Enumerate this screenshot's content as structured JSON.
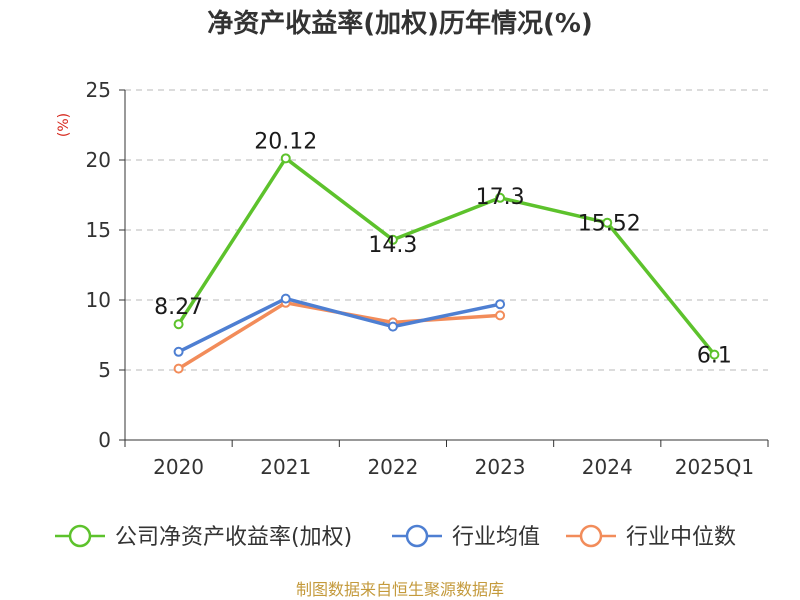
{
  "chart_data": {
    "type": "line",
    "title": "净资产收益率(加权)历年情况(%)",
    "unit_label": "(%)",
    "categories": [
      "2020",
      "2021",
      "2022",
      "2023",
      "2024",
      "2025Q1"
    ],
    "ylim": [
      0,
      25
    ],
    "yticks": [
      0,
      5,
      10,
      15,
      20,
      25
    ],
    "grid": true,
    "legend_position": "bottom",
    "series": [
      {
        "name": "公司净资产收益率(加权)",
        "color": "#5dc22c",
        "values": [
          8.27,
          20.12,
          14.3,
          17.3,
          15.52,
          6.1
        ],
        "labels": [
          "8.27",
          "20.12",
          "14.3",
          "17.3",
          "15.52",
          "6.1"
        ]
      },
      {
        "name": "行业均值",
        "color": "#4e7fd2",
        "values": [
          6.3,
          10.1,
          8.1,
          9.7,
          null,
          null
        ]
      },
      {
        "name": "行业中位数",
        "color": "#f28c5a",
        "values": [
          5.1,
          9.8,
          8.4,
          8.9,
          null,
          null
        ]
      }
    ],
    "source": "制图数据来自恒生聚源数据库"
  }
}
